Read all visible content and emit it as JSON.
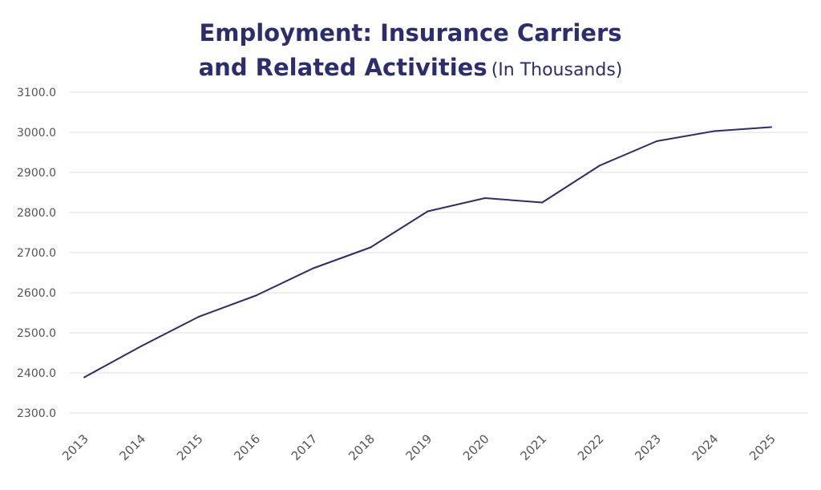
{
  "chart_data": {
    "type": "line",
    "title_line1": "Employment: Insurance Carriers",
    "title_line2": "and Related Activities",
    "subtitle": "(In Thousands)",
    "x": [
      "2013",
      "2014",
      "2015",
      "2016",
      "2017",
      "2018",
      "2019",
      "2020",
      "2021",
      "2022",
      "2023",
      "2024",
      "2025"
    ],
    "series": [
      {
        "values": [
          2389,
          2467,
          2540,
          2593,
          2661,
          2713,
          2803,
          2836,
          2825,
          2917,
          2978,
          3003,
          3013
        ]
      }
    ],
    "yticks": [
      "2300.0",
      "2400.0",
      "2500.0",
      "2600.0",
      "2700.0",
      "2800.0",
      "2900.0",
      "3000.0",
      "3100.0"
    ],
    "ylim": [
      2300,
      3100
    ],
    "xlabel": "",
    "ylabel": "",
    "grid": true,
    "legend": "none",
    "line_color": "#2b2d6e"
  }
}
